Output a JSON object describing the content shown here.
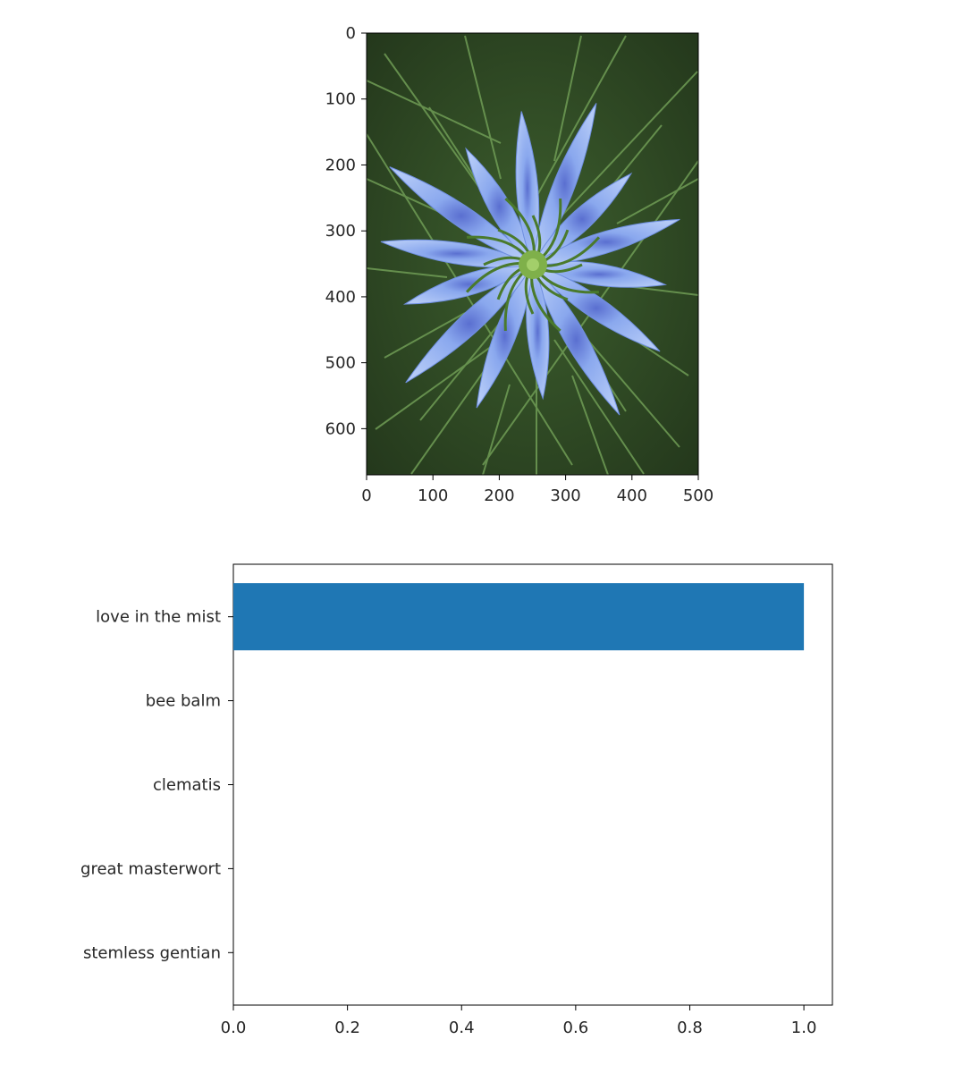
{
  "chart_data": [
    {
      "type": "image",
      "description_subject": "blue nigella flower",
      "xlim": [
        0,
        500
      ],
      "ylim": [
        670,
        0
      ],
      "xticks": [
        "0",
        "100",
        "200",
        "300",
        "400",
        "500"
      ],
      "yticks": [
        "0",
        "100",
        "200",
        "300",
        "400",
        "500",
        "600"
      ],
      "colors": {
        "background": "#2f4a26",
        "grass": "#4f7a3a",
        "petal": "#8fb0f0",
        "petal_dark": "#5a78d6",
        "center": "#6a9a3a"
      }
    },
    {
      "type": "bar",
      "orientation": "horizontal",
      "categories": [
        "love in the mist",
        "bee balm",
        "clematis",
        "great masterwort",
        "stemless gentian"
      ],
      "values": [
        1.0,
        0.0,
        0.0,
        0.0,
        0.0
      ],
      "xlim": [
        0,
        1.05
      ],
      "xticks": [
        "0.0",
        "0.2",
        "0.4",
        "0.6",
        "0.8",
        "1.0"
      ],
      "bar_color": "#1f77b4",
      "grid": false
    }
  ]
}
